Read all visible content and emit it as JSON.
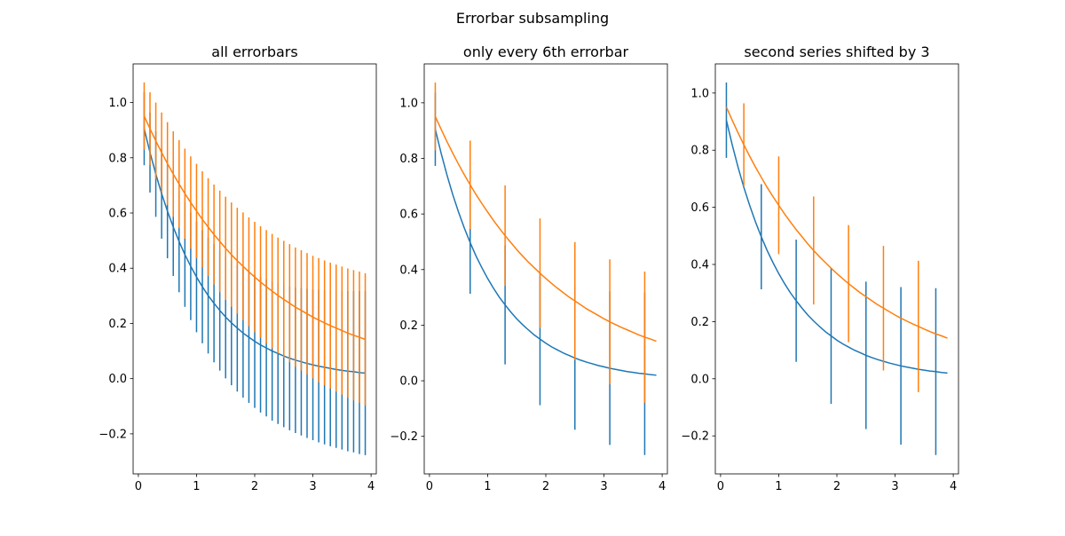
{
  "chart_data": {
    "suptitle": "Errorbar subsampling",
    "type": "line",
    "x": [
      0.1,
      0.2,
      0.3,
      0.4,
      0.5,
      0.6,
      0.7,
      0.8,
      0.9,
      1.0,
      1.1,
      1.2,
      1.3,
      1.4,
      1.5,
      1.6,
      1.7,
      1.8,
      1.9,
      2.0,
      2.1,
      2.2,
      2.3,
      2.4,
      2.5,
      2.6,
      2.7,
      2.8,
      2.9,
      3.0,
      3.1,
      3.2,
      3.3,
      3.4,
      3.5,
      3.6,
      3.7,
      3.8,
      3.9
    ],
    "series": [
      {
        "color": "#1f77b4",
        "y": [
          0.905,
          0.819,
          0.741,
          0.67,
          0.607,
          0.549,
          0.497,
          0.449,
          0.407,
          0.368,
          0.333,
          0.301,
          0.273,
          0.247,
          0.223,
          0.202,
          0.183,
          0.165,
          0.15,
          0.135,
          0.122,
          0.111,
          0.1,
          0.091,
          0.082,
          0.074,
          0.067,
          0.061,
          0.055,
          0.05,
          0.045,
          0.041,
          0.037,
          0.033,
          0.03,
          0.027,
          0.025,
          0.022,
          0.02
        ],
        "yerr": [
          0.132,
          0.145,
          0.155,
          0.163,
          0.171,
          0.177,
          0.184,
          0.189,
          0.195,
          0.2,
          0.205,
          0.21,
          0.214,
          0.218,
          0.222,
          0.226,
          0.23,
          0.234,
          0.238,
          0.241,
          0.245,
          0.248,
          0.252,
          0.255,
          0.258,
          0.261,
          0.264,
          0.267,
          0.27,
          0.273,
          0.276,
          0.279,
          0.282,
          0.284,
          0.287,
          0.29,
          0.292,
          0.295,
          0.297
        ]
      },
      {
        "color": "#ff7f0e",
        "y": [
          0.951,
          0.905,
          0.861,
          0.819,
          0.779,
          0.741,
          0.705,
          0.67,
          0.638,
          0.607,
          0.577,
          0.549,
          0.522,
          0.497,
          0.472,
          0.449,
          0.427,
          0.407,
          0.387,
          0.368,
          0.35,
          0.333,
          0.317,
          0.301,
          0.287,
          0.273,
          0.259,
          0.247,
          0.235,
          0.223,
          0.212,
          0.202,
          0.192,
          0.183,
          0.174,
          0.165,
          0.157,
          0.15,
          0.142
        ],
        "yerr": [
          0.122,
          0.132,
          0.139,
          0.145,
          0.15,
          0.155,
          0.159,
          0.163,
          0.167,
          0.171,
          0.174,
          0.177,
          0.181,
          0.184,
          0.187,
          0.189,
          0.192,
          0.195,
          0.197,
          0.2,
          0.202,
          0.205,
          0.207,
          0.21,
          0.212,
          0.214,
          0.216,
          0.218,
          0.22,
          0.222,
          0.225,
          0.226,
          0.228,
          0.23,
          0.232,
          0.234,
          0.236,
          0.238,
          0.24
        ]
      }
    ],
    "panels": [
      {
        "title": "all errorbars",
        "errorevery": [
          [
            0,
            1
          ],
          [
            0,
            1
          ]
        ],
        "xlim": [
          -0.09,
          4.09
        ],
        "ylim": [
          -0.345,
          1.14
        ],
        "xticks": [
          0,
          1,
          2,
          3,
          4
        ],
        "xticklabels": [
          "0",
          "1",
          "2",
          "3",
          "4"
        ],
        "yticks": [
          -0.2,
          0,
          0.2,
          0.4,
          0.6,
          0.8,
          1.0
        ],
        "yticklabels": [
          "−0.2",
          "0.0",
          "0.2",
          "0.4",
          "0.6",
          "0.8",
          "1.0"
        ]
      },
      {
        "title": "only every 6th errorbar",
        "errorevery": [
          [
            0,
            6
          ],
          [
            0,
            6
          ]
        ],
        "xlim": [
          -0.09,
          4.09
        ],
        "ylim": [
          -0.335,
          1.14
        ],
        "xticks": [
          0,
          1,
          2,
          3,
          4
        ],
        "xticklabels": [
          "0",
          "1",
          "2",
          "3",
          "4"
        ],
        "yticks": [
          -0.2,
          0,
          0.2,
          0.4,
          0.6,
          0.8,
          1.0
        ],
        "yticklabels": [
          "−0.2",
          "0.0",
          "0.2",
          "0.4",
          "0.6",
          "0.8",
          "1.0"
        ]
      },
      {
        "title": "second series shifted by 3",
        "errorevery": [
          [
            0,
            6
          ],
          [
            3,
            6
          ]
        ],
        "xlim": [
          -0.09,
          4.09
        ],
        "ylim": [
          -0.333,
          1.102
        ],
        "xticks": [
          0,
          1,
          2,
          3,
          4
        ],
        "xticklabels": [
          "0",
          "1",
          "2",
          "3",
          "4"
        ],
        "yticks": [
          -0.2,
          0,
          0.2,
          0.4,
          0.6,
          0.8,
          1.0
        ],
        "yticklabels": [
          "−0.2",
          "0.0",
          "0.2",
          "0.4",
          "0.6",
          "0.8",
          "1.0"
        ]
      }
    ]
  }
}
